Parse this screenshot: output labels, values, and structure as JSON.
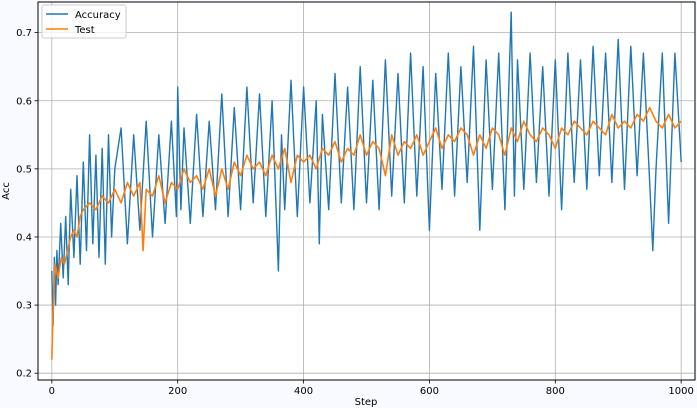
{
  "chart_data": {
    "type": "line",
    "xlabel": "Step",
    "ylabel": "Acc",
    "xlim": [
      -22,
      1022
    ],
    "ylim": [
      0.19,
      0.745
    ],
    "xticks": [
      0,
      200,
      400,
      600,
      800,
      1000
    ],
    "xtick_labels": [
      "0",
      "200",
      "400",
      "600",
      "800",
      "1000"
    ],
    "yticks": [
      0.2,
      0.3,
      0.4,
      0.5,
      0.6,
      0.7
    ],
    "ytick_labels": [
      "0.2",
      "0.3",
      "0.4",
      "0.5",
      "0.6",
      "0.7"
    ],
    "grid": true,
    "legend_position": "top-left",
    "series": [
      {
        "name": "Accuracy",
        "color": "#1f77b4",
        "x": [
          0,
          2,
          4,
          6,
          8,
          10,
          14,
          18,
          22,
          26,
          30,
          35,
          40,
          45,
          50,
          55,
          60,
          65,
          70,
          75,
          80,
          85,
          90,
          95,
          100,
          110,
          120,
          130,
          140,
          150,
          160,
          170,
          180,
          190,
          198,
          200,
          205,
          210,
          220,
          230,
          240,
          250,
          260,
          270,
          280,
          290,
          300,
          310,
          320,
          330,
          340,
          350,
          360,
          365,
          370,
          380,
          390,
          400,
          410,
          420,
          425,
          430,
          440,
          450,
          460,
          470,
          480,
          490,
          500,
          510,
          520,
          530,
          540,
          550,
          560,
          570,
          580,
          590,
          600,
          610,
          620,
          630,
          640,
          650,
          660,
          670,
          680,
          690,
          700,
          710,
          720,
          730,
          735,
          740,
          750,
          760,
          770,
          780,
          790,
          800,
          810,
          820,
          830,
          840,
          850,
          860,
          870,
          880,
          890,
          900,
          910,
          920,
          930,
          940,
          950,
          955,
          960,
          970,
          980,
          990,
          1000
        ],
        "y": [
          0.35,
          0.27,
          0.37,
          0.3,
          0.38,
          0.33,
          0.42,
          0.34,
          0.43,
          0.33,
          0.47,
          0.37,
          0.49,
          0.36,
          0.51,
          0.38,
          0.55,
          0.39,
          0.52,
          0.37,
          0.53,
          0.36,
          0.55,
          0.4,
          0.5,
          0.56,
          0.39,
          0.55,
          0.41,
          0.57,
          0.4,
          0.55,
          0.42,
          0.57,
          0.43,
          0.62,
          0.44,
          0.56,
          0.42,
          0.58,
          0.43,
          0.57,
          0.44,
          0.61,
          0.43,
          0.59,
          0.44,
          0.62,
          0.45,
          0.61,
          0.43,
          0.6,
          0.35,
          0.55,
          0.44,
          0.63,
          0.43,
          0.62,
          0.45,
          0.6,
          0.39,
          0.58,
          0.44,
          0.64,
          0.45,
          0.62,
          0.44,
          0.65,
          0.45,
          0.63,
          0.44,
          0.66,
          0.46,
          0.64,
          0.45,
          0.67,
          0.46,
          0.65,
          0.41,
          0.64,
          0.47,
          0.67,
          0.46,
          0.65,
          0.48,
          0.68,
          0.41,
          0.66,
          0.47,
          0.67,
          0.44,
          0.73,
          0.46,
          0.66,
          0.47,
          0.67,
          0.48,
          0.65,
          0.46,
          0.66,
          0.44,
          0.67,
          0.48,
          0.66,
          0.47,
          0.68,
          0.49,
          0.67,
          0.48,
          0.69,
          0.47,
          0.68,
          0.49,
          0.67,
          0.48,
          0.38,
          0.5,
          0.67,
          0.42,
          0.67,
          0.51
        ]
      },
      {
        "name": "Test",
        "color": "#ff7f0e",
        "x": [
          0,
          2,
          5,
          10,
          15,
          20,
          25,
          30,
          35,
          40,
          45,
          50,
          60,
          70,
          80,
          90,
          100,
          110,
          120,
          130,
          140,
          145,
          150,
          160,
          170,
          180,
          190,
          200,
          210,
          220,
          230,
          240,
          250,
          260,
          270,
          280,
          290,
          300,
          310,
          320,
          330,
          340,
          350,
          360,
          370,
          380,
          390,
          400,
          410,
          420,
          430,
          440,
          450,
          460,
          470,
          480,
          490,
          500,
          510,
          520,
          530,
          540,
          550,
          560,
          570,
          580,
          590,
          600,
          610,
          620,
          630,
          640,
          650,
          660,
          670,
          680,
          690,
          700,
          710,
          720,
          730,
          740,
          750,
          760,
          770,
          780,
          790,
          800,
          810,
          820,
          830,
          840,
          850,
          860,
          870,
          880,
          890,
          900,
          910,
          920,
          930,
          940,
          950,
          960,
          970,
          980,
          990,
          1000
        ],
        "y": [
          0.22,
          0.29,
          0.36,
          0.34,
          0.37,
          0.36,
          0.38,
          0.4,
          0.41,
          0.4,
          0.43,
          0.44,
          0.45,
          0.44,
          0.46,
          0.45,
          0.47,
          0.45,
          0.48,
          0.46,
          0.48,
          0.38,
          0.47,
          0.46,
          0.49,
          0.45,
          0.48,
          0.47,
          0.5,
          0.48,
          0.49,
          0.47,
          0.5,
          0.46,
          0.5,
          0.47,
          0.51,
          0.49,
          0.52,
          0.5,
          0.51,
          0.49,
          0.52,
          0.5,
          0.53,
          0.48,
          0.52,
          0.51,
          0.52,
          0.5,
          0.53,
          0.52,
          0.54,
          0.51,
          0.53,
          0.52,
          0.55,
          0.52,
          0.54,
          0.53,
          0.49,
          0.55,
          0.52,
          0.54,
          0.53,
          0.55,
          0.52,
          0.54,
          0.56,
          0.53,
          0.55,
          0.54,
          0.56,
          0.55,
          0.52,
          0.55,
          0.53,
          0.56,
          0.55,
          0.52,
          0.56,
          0.54,
          0.57,
          0.55,
          0.54,
          0.56,
          0.55,
          0.53,
          0.56,
          0.55,
          0.57,
          0.56,
          0.55,
          0.57,
          0.56,
          0.55,
          0.58,
          0.56,
          0.57,
          0.56,
          0.58,
          0.57,
          0.59,
          0.57,
          0.56,
          0.58,
          0.56,
          0.57
        ]
      }
    ]
  }
}
